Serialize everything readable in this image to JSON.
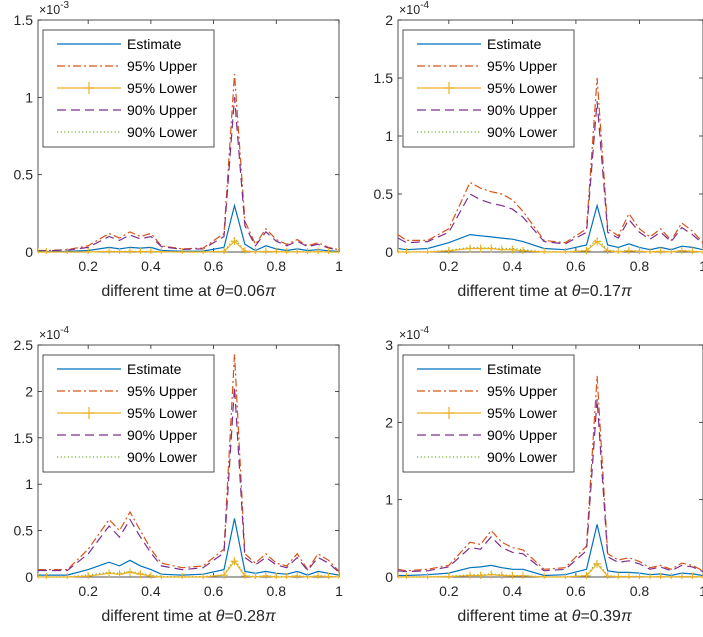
{
  "figure": {
    "legend_entries": [
      "Estimate",
      "95% Upper",
      "95% Lower",
      "90% Upper",
      "90% Lower"
    ]
  },
  "styles": {
    "Estimate": {
      "color": "#0072BD",
      "dash": "",
      "marker": ""
    },
    "95% Upper": {
      "color": "#D95319",
      "dash": "8 3 2 3",
      "marker": ""
    },
    "95% Lower": {
      "color": "#EDB120",
      "dash": "",
      "marker": "plus"
    },
    "90% Upper": {
      "color": "#7E2F8E",
      "dash": "9 5",
      "marker": ""
    },
    "90% Lower": {
      "color": "#77AC30",
      "dash": "1.2 2.4",
      "marker": ""
    }
  },
  "chart_data": [
    {
      "type": "line",
      "xlabel_prefix": "different time at ",
      "xlabel_symbol": "θ",
      "xlabel_value": "=0.06",
      "xlabel_unit": "π",
      "xlim": [
        0.04,
        1.0
      ],
      "ylim": [
        0,
        1.5
      ],
      "yticks": [
        0,
        0.5,
        1,
        1.5
      ],
      "yticklabels": [
        "0",
        "0.5",
        "1",
        "1.5"
      ],
      "xticks": [
        0.2,
        0.4,
        0.6,
        0.8,
        1
      ],
      "xticklabels": [
        "0.2",
        "0.4",
        "0.6",
        "0.8",
        "1"
      ],
      "exponent_base": "×10",
      "exponent_power": "-3",
      "legend_location": "top-left",
      "x": [
        0.04,
        0.0667,
        0.1333,
        0.2,
        0.2667,
        0.3,
        0.3333,
        0.3667,
        0.4,
        0.4333,
        0.5,
        0.5667,
        0.6333,
        0.6667,
        0.7,
        0.7333,
        0.7667,
        0.8,
        0.8333,
        0.8667,
        0.9,
        0.9333,
        0.9667,
        1.0
      ],
      "series": [
        {
          "name": "Estimate",
          "values": [
            0.003,
            0.003,
            0.004,
            0.01,
            0.03,
            0.02,
            0.03,
            0.025,
            0.03,
            0.01,
            0.005,
            0.006,
            0.03,
            0.3,
            0.05,
            0.01,
            0.04,
            0.02,
            0.01,
            0.02,
            0.01,
            0.015,
            0.008,
            0.004
          ]
        },
        {
          "name": "95% Upper",
          "values": [
            0.01,
            0.01,
            0.015,
            0.04,
            0.12,
            0.09,
            0.13,
            0.1,
            0.12,
            0.04,
            0.02,
            0.025,
            0.12,
            1.15,
            0.2,
            0.05,
            0.15,
            0.08,
            0.05,
            0.08,
            0.04,
            0.06,
            0.03,
            0.015
          ]
        },
        {
          "name": "95% Lower",
          "values": [
            0,
            0,
            0,
            0,
            0.003,
            0.002,
            0.003,
            0.002,
            0.003,
            0.001,
            0,
            0,
            0.003,
            0.07,
            0.005,
            0,
            0.003,
            0.001,
            0,
            0.001,
            0,
            0.001,
            0,
            0
          ]
        },
        {
          "name": "90% Upper",
          "values": [
            0.008,
            0.008,
            0.012,
            0.03,
            0.1,
            0.075,
            0.11,
            0.085,
            0.1,
            0.035,
            0.017,
            0.02,
            0.1,
            1.0,
            0.17,
            0.04,
            0.13,
            0.07,
            0.04,
            0.07,
            0.035,
            0.05,
            0.025,
            0.012
          ]
        },
        {
          "name": "90% Lower",
          "values": [
            0,
            0,
            0,
            0,
            0.005,
            0.004,
            0.005,
            0.004,
            0.005,
            0.002,
            0.001,
            0.001,
            0.005,
            0.09,
            0.008,
            0.001,
            0.005,
            0.002,
            0.001,
            0.002,
            0.001,
            0.002,
            0,
            0
          ]
        }
      ]
    },
    {
      "type": "line",
      "xlabel_prefix": "different time at ",
      "xlabel_symbol": "θ",
      "xlabel_value": "=0.17",
      "xlabel_unit": "π",
      "xlim": [
        0.04,
        1.0
      ],
      "ylim": [
        0,
        2
      ],
      "yticks": [
        0,
        0.5,
        1,
        1.5,
        2
      ],
      "yticklabels": [
        "0",
        "0.5",
        "1",
        "1.5",
        "2"
      ],
      "xticks": [
        0.2,
        0.4,
        0.6,
        0.8,
        1
      ],
      "xticklabels": [
        "0.2",
        "0.4",
        "0.6",
        "0.8",
        "1"
      ],
      "exponent_base": "×10",
      "exponent_power": "-4",
      "legend_location": "top-left",
      "x": [
        0.04,
        0.0667,
        0.1333,
        0.2,
        0.2667,
        0.3,
        0.3333,
        0.3667,
        0.4,
        0.4333,
        0.5,
        0.5667,
        0.6333,
        0.6667,
        0.7,
        0.7333,
        0.7667,
        0.8,
        0.8333,
        0.8667,
        0.9,
        0.9333,
        0.9667,
        1.0
      ],
      "series": [
        {
          "name": "Estimate",
          "values": [
            0.03,
            0.02,
            0.03,
            0.08,
            0.15,
            0.14,
            0.13,
            0.12,
            0.11,
            0.09,
            0.03,
            0.02,
            0.06,
            0.4,
            0.06,
            0.04,
            0.07,
            0.04,
            0.02,
            0.04,
            0.02,
            0.05,
            0.04,
            0.02
          ]
        },
        {
          "name": "95% Upper",
          "values": [
            0.15,
            0.1,
            0.1,
            0.2,
            0.6,
            0.55,
            0.52,
            0.5,
            0.45,
            0.35,
            0.1,
            0.08,
            0.2,
            1.5,
            0.2,
            0.14,
            0.33,
            0.2,
            0.13,
            0.2,
            0.1,
            0.25,
            0.18,
            0.08
          ]
        },
        {
          "name": "95% Lower",
          "values": [
            0,
            0,
            0,
            0.01,
            0.03,
            0.03,
            0.03,
            0.02,
            0.02,
            0.01,
            0,
            0,
            0.01,
            0.09,
            0.01,
            0,
            0.01,
            0.005,
            0,
            0.005,
            0,
            0.01,
            0.005,
            0
          ]
        },
        {
          "name": "90% Upper",
          "values": [
            0.12,
            0.08,
            0.09,
            0.17,
            0.5,
            0.45,
            0.42,
            0.4,
            0.37,
            0.3,
            0.09,
            0.07,
            0.17,
            1.3,
            0.17,
            0.12,
            0.28,
            0.17,
            0.11,
            0.17,
            0.09,
            0.21,
            0.15,
            0.07
          ]
        },
        {
          "name": "90% Lower",
          "values": [
            0.002,
            0.001,
            0.002,
            0.015,
            0.04,
            0.035,
            0.035,
            0.03,
            0.03,
            0.02,
            0.003,
            0.002,
            0.015,
            0.12,
            0.015,
            0.005,
            0.015,
            0.008,
            0.003,
            0.008,
            0.003,
            0.015,
            0.008,
            0.002
          ]
        }
      ]
    },
    {
      "type": "line",
      "xlabel_prefix": "different time at ",
      "xlabel_symbol": "θ",
      "xlabel_value": "=0.28",
      "xlabel_unit": "π",
      "xlim": [
        0.04,
        1.0
      ],
      "ylim": [
        0,
        2.5
      ],
      "yticks": [
        0,
        0.5,
        1,
        1.5,
        2,
        2.5
      ],
      "yticklabels": [
        "0",
        "0.5",
        "1",
        "1.5",
        "2",
        "2.5"
      ],
      "xticks": [
        0.2,
        0.4,
        0.6,
        0.8,
        1
      ],
      "xticklabels": [
        "0.2",
        "0.4",
        "0.6",
        "0.8",
        "1"
      ],
      "exponent_base": "×10",
      "exponent_power": "-4",
      "legend_location": "top-left",
      "x": [
        0.04,
        0.0667,
        0.1333,
        0.2,
        0.2667,
        0.3,
        0.3333,
        0.3667,
        0.4,
        0.4333,
        0.5,
        0.5667,
        0.6333,
        0.6667,
        0.7,
        0.7333,
        0.7667,
        0.8,
        0.8333,
        0.8667,
        0.9,
        0.9333,
        0.9667,
        1.0
      ],
      "series": [
        {
          "name": "Estimate",
          "values": [
            0.02,
            0.02,
            0.02,
            0.08,
            0.16,
            0.12,
            0.18,
            0.12,
            0.08,
            0.03,
            0.02,
            0.03,
            0.08,
            0.63,
            0.06,
            0.04,
            0.06,
            0.04,
            0.03,
            0.06,
            0.02,
            0.06,
            0.04,
            0.02
          ]
        },
        {
          "name": "95% Upper",
          "values": [
            0.08,
            0.08,
            0.08,
            0.3,
            0.62,
            0.5,
            0.7,
            0.5,
            0.3,
            0.15,
            0.1,
            0.12,
            0.3,
            2.4,
            0.25,
            0.15,
            0.25,
            0.15,
            0.12,
            0.25,
            0.08,
            0.25,
            0.18,
            0.06
          ]
        },
        {
          "name": "95% Lower",
          "values": [
            0,
            0,
            0,
            0.01,
            0.04,
            0.03,
            0.05,
            0.03,
            0.01,
            0,
            0,
            0,
            0.02,
            0.17,
            0.01,
            0,
            0.01,
            0,
            0,
            0.01,
            0,
            0.01,
            0.005,
            0
          ]
        },
        {
          "name": "90% Upper",
          "values": [
            0.07,
            0.07,
            0.07,
            0.25,
            0.55,
            0.43,
            0.62,
            0.43,
            0.26,
            0.12,
            0.08,
            0.1,
            0.26,
            2.05,
            0.21,
            0.13,
            0.21,
            0.13,
            0.1,
            0.21,
            0.07,
            0.21,
            0.15,
            0.05
          ]
        },
        {
          "name": "90% Lower",
          "values": [
            0.002,
            0.002,
            0.002,
            0.02,
            0.05,
            0.04,
            0.06,
            0.04,
            0.02,
            0.005,
            0.003,
            0.004,
            0.025,
            0.2,
            0.015,
            0.005,
            0.015,
            0.005,
            0.004,
            0.015,
            0.002,
            0.015,
            0.008,
            0.002
          ]
        }
      ]
    },
    {
      "type": "line",
      "xlabel_prefix": "different time at ",
      "xlabel_symbol": "θ",
      "xlabel_value": "=0.39",
      "xlabel_unit": "π",
      "xlim": [
        0.04,
        1.0
      ],
      "ylim": [
        0,
        3
      ],
      "yticks": [
        0,
        1,
        2,
        3
      ],
      "yticklabels": [
        "0",
        "1",
        "2",
        "3"
      ],
      "xticks": [
        0.2,
        0.4,
        0.6,
        0.8,
        1
      ],
      "xticklabels": [
        "0.2",
        "0.4",
        "0.6",
        "0.8",
        "1"
      ],
      "exponent_base": "×10",
      "exponent_power": "-4",
      "legend_location": "top-left",
      "x": [
        0.04,
        0.0667,
        0.1333,
        0.2,
        0.2667,
        0.3,
        0.3333,
        0.3667,
        0.4,
        0.4333,
        0.5,
        0.5667,
        0.6333,
        0.6667,
        0.7,
        0.7333,
        0.7667,
        0.8,
        0.8333,
        0.8667,
        0.9,
        0.9333,
        0.9667,
        1.0
      ],
      "series": [
        {
          "name": "Estimate",
          "values": [
            0.02,
            0.02,
            0.03,
            0.05,
            0.12,
            0.13,
            0.15,
            0.12,
            0.1,
            0.1,
            0.02,
            0.03,
            0.1,
            0.68,
            0.08,
            0.06,
            0.06,
            0.05,
            0.03,
            0.04,
            0.02,
            0.05,
            0.04,
            0.02
          ]
        },
        {
          "name": "95% Upper",
          "values": [
            0.1,
            0.08,
            0.1,
            0.15,
            0.45,
            0.42,
            0.6,
            0.45,
            0.38,
            0.35,
            0.1,
            0.12,
            0.4,
            2.6,
            0.3,
            0.22,
            0.25,
            0.2,
            0.12,
            0.15,
            0.1,
            0.18,
            0.15,
            0.08
          ]
        },
        {
          "name": "95% Lower",
          "values": [
            0,
            0,
            0,
            0.005,
            0.02,
            0.02,
            0.03,
            0.02,
            0.015,
            0.015,
            0,
            0,
            0.015,
            0.17,
            0.01,
            0.005,
            0.005,
            0.005,
            0,
            0.005,
            0,
            0.005,
            0.005,
            0
          ]
        },
        {
          "name": "90% Upper",
          "values": [
            0.08,
            0.07,
            0.08,
            0.13,
            0.38,
            0.36,
            0.52,
            0.38,
            0.32,
            0.3,
            0.08,
            0.1,
            0.34,
            2.3,
            0.26,
            0.19,
            0.21,
            0.17,
            0.1,
            0.13,
            0.08,
            0.15,
            0.13,
            0.07
          ]
        },
        {
          "name": "90% Lower",
          "values": [
            0.002,
            0.002,
            0.003,
            0.01,
            0.03,
            0.03,
            0.04,
            0.03,
            0.02,
            0.02,
            0.002,
            0.003,
            0.02,
            0.2,
            0.015,
            0.008,
            0.008,
            0.008,
            0.003,
            0.008,
            0.002,
            0.008,
            0.006,
            0.002
          ]
        }
      ]
    }
  ]
}
